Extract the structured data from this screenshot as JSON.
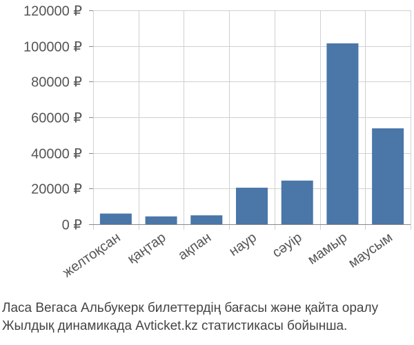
{
  "chart_data": {
    "type": "bar",
    "categories": [
      "желтоқсан",
      "қаңтар",
      "ақпан",
      "наур",
      "сәуір",
      "мамыр",
      "маусым"
    ],
    "values": [
      6000,
      4400,
      5000,
      20500,
      24500,
      101500,
      53800
    ],
    "ylim": [
      0,
      120000
    ],
    "yticks": [
      "0 ₽",
      "20000 ₽",
      "40000 ₽",
      "60000 ₽",
      "80000 ₽",
      "100000 ₽",
      "120000 ₽"
    ],
    "ytick_values": [
      0,
      20000,
      40000,
      60000,
      80000,
      100000,
      120000
    ],
    "bar_color": "#4a76a8",
    "grid": true,
    "grid_color": "#d0d0d0"
  },
  "caption": {
    "line1": "Ласа Вегаса Альбукерк билеттердің бағасы және қайта оралу",
    "line2": "Жылдық динамикада Avticket.kz статистикасы бойынша."
  }
}
